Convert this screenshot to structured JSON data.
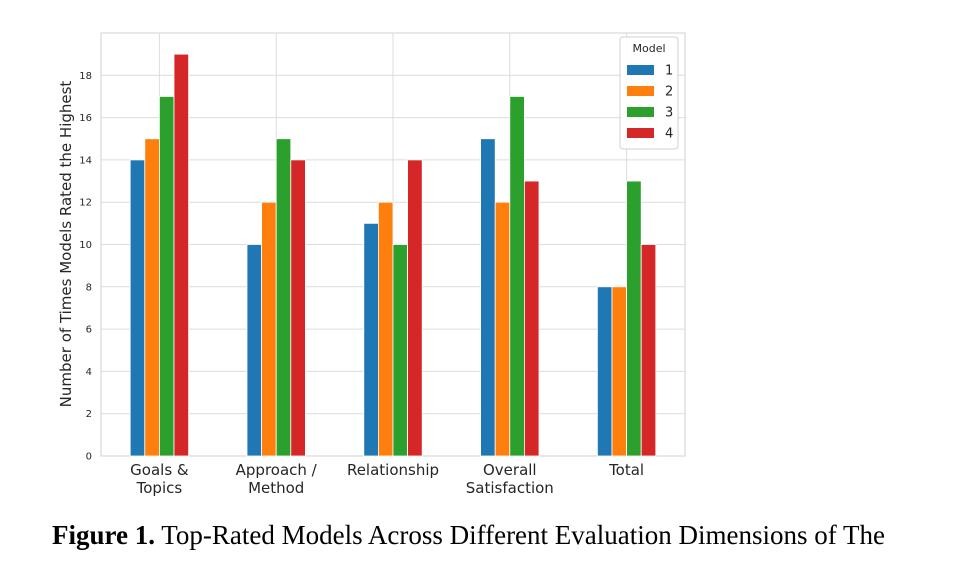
{
  "caption": {
    "figure_number": "Figure 1.",
    "text": "Top-Rated Models Across Different Evaluation Dimensions of The"
  },
  "chart_data": {
    "type": "bar",
    "title": "",
    "xlabel": "",
    "ylabel": "Number of Times Models Rated the Highest",
    "categories": [
      [
        "Goals &",
        "Topics"
      ],
      [
        "Approach /",
        "Method"
      ],
      [
        "Relationship"
      ],
      [
        "Overall",
        "Satisfaction"
      ],
      [
        "Total"
      ]
    ],
    "series": [
      {
        "name": "1",
        "color": "#1f77b4",
        "values": [
          14,
          10,
          11,
          15,
          8
        ]
      },
      {
        "name": "2",
        "color": "#ff7f0e",
        "values": [
          15,
          12,
          12,
          12,
          8
        ]
      },
      {
        "name": "3",
        "color": "#2ca02c",
        "values": [
          17,
          15,
          10,
          17,
          13
        ]
      },
      {
        "name": "4",
        "color": "#d62728",
        "values": [
          19,
          14,
          14,
          13,
          10
        ]
      }
    ],
    "ylim": [
      0,
      20
    ],
    "yticks": [
      0,
      2,
      4,
      6,
      8,
      10,
      12,
      14,
      16,
      18
    ],
    "grid": true,
    "legend": {
      "title": "Model",
      "position": "top-right"
    }
  }
}
